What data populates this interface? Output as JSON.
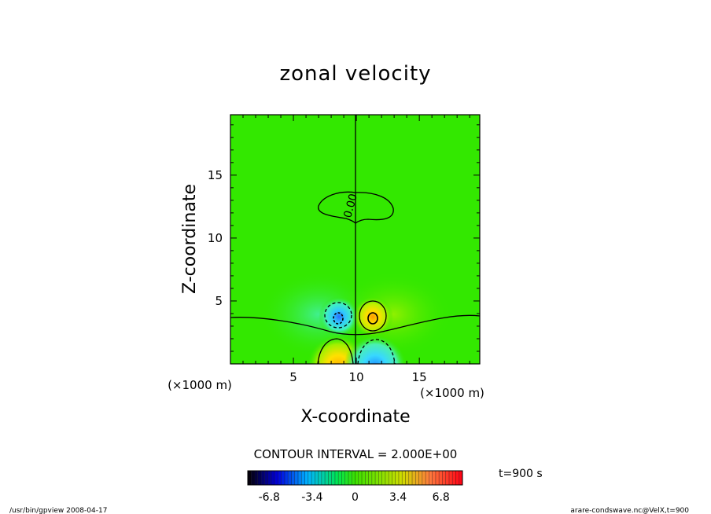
{
  "chart_data": {
    "type": "heatmap",
    "title": "zonal velocity",
    "xlabel": "X-coordinate",
    "ylabel": "Z-coordinate",
    "x_unit": "(×1000 m)",
    "y_unit": "(×1000 m)",
    "xlim": [
      0,
      19.8
    ],
    "ylim": [
      0,
      19.8
    ],
    "x_ticks": [
      5,
      10,
      15
    ],
    "y_ticks": [
      5,
      10,
      15
    ],
    "contour_interval_label": "CONTOUR INTERVAL = 2.000E+00",
    "contour_label": "0.00",
    "time_label": "t=900 s",
    "colorbar_ticks": [
      "-6.8",
      "-3.4",
      "0",
      "3.4",
      "6.8"
    ],
    "colorbar_range": [
      -8.5,
      8.5
    ],
    "features": [
      {
        "kind": "max",
        "x": 11.3,
        "z": 3.7,
        "value": 3.2
      },
      {
        "kind": "min",
        "x": 8.7,
        "z": 3.7,
        "value": -3.2
      },
      {
        "kind": "max",
        "x": 8.7,
        "z": 0.6,
        "value": 4.0
      },
      {
        "kind": "min",
        "x": 11.3,
        "z": 0.6,
        "value": -4.0
      }
    ]
  },
  "footer": {
    "left": "/usr/bin/gpview   2008-04-17",
    "right": "arare-condswave.nc@VelX,t=900"
  }
}
